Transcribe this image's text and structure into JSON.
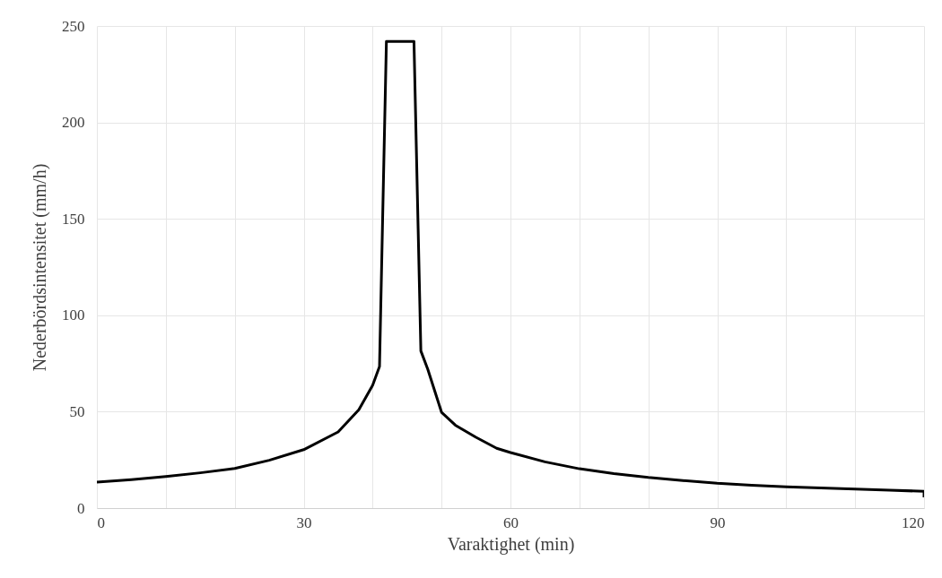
{
  "chart_data": {
    "type": "line",
    "xlabel": "Varaktighet (min)",
    "ylabel": "Nederbördsintensitet (mm/h)",
    "x": [
      0,
      5,
      10,
      15,
      20,
      25,
      30,
      35,
      38,
      40,
      41,
      42,
      46,
      47,
      48,
      50,
      52,
      55,
      58,
      60,
      65,
      70,
      75,
      80,
      85,
      90,
      95,
      100,
      105,
      110,
      115,
      120,
      120
    ],
    "series": [
      {
        "color": "#000000",
        "values": [
          13.5,
          14.8,
          16.4,
          18.3,
          20.6,
          24.8,
          30.3,
          39.5,
          51,
          63.7,
          73.4,
          242,
          242,
          81.5,
          72,
          49.7,
          43,
          36.7,
          31,
          28.8,
          24,
          20.4,
          17.9,
          15.9,
          14.3,
          12.9,
          11.9,
          11.0,
          10.4,
          9.9,
          9.3,
          8.7,
          5.6
        ]
      }
    ],
    "xlim": [
      0,
      120
    ],
    "xticks": [
      0,
      {
        "value": 10,
        "label": null
      },
      {
        "value": 20,
        "label": null
      },
      30,
      {
        "value": 40,
        "label": null
      },
      {
        "value": 50,
        "label": null
      },
      60,
      {
        "value": 70,
        "label": null
      },
      {
        "value": 80,
        "label": null
      },
      90,
      {
        "value": 100,
        "label": null
      },
      {
        "value": 110,
        "label": null
      },
      120
    ],
    "ylim": [
      0,
      250
    ],
    "yticks": [
      0,
      50,
      100,
      150,
      200,
      250
    ],
    "grid": true,
    "marker": "none",
    "line_style": "solid"
  }
}
